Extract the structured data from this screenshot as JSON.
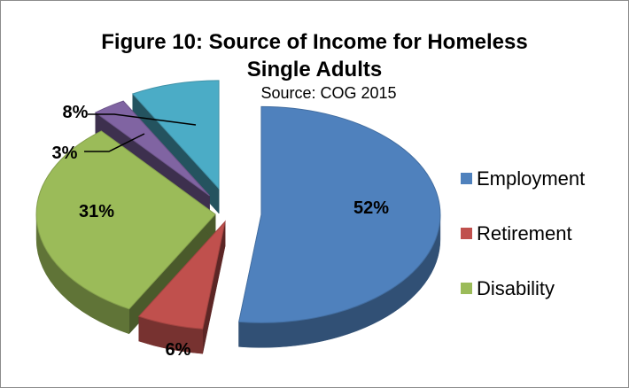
{
  "chart_data": {
    "type": "pie",
    "title": "Figure 10:  Source of Income for Homeless Single Adults",
    "title_lines": [
      "Figure 10:  Source of Income for Homeless",
      "Single Adults"
    ],
    "subtitle": "Source:  COG 2015",
    "three_d": true,
    "exploded": true,
    "legend_position": "right",
    "slices": [
      {
        "label": "Employment",
        "value": 52,
        "display": "52%",
        "color": "#4f81bd"
      },
      {
        "label": "Retirement",
        "value": 6,
        "display": "6%",
        "color": "#c0504d"
      },
      {
        "label": "Disability",
        "value": 31,
        "display": "31%",
        "color": "#9bbb59"
      },
      {
        "label": "",
        "value": 3,
        "display": "3%",
        "color": "#8064a2"
      },
      {
        "label": "",
        "value": 8,
        "display": "8%",
        "color": "#4bacc6"
      }
    ],
    "legend": [
      "Employment",
      "Retirement",
      "Disability"
    ]
  }
}
